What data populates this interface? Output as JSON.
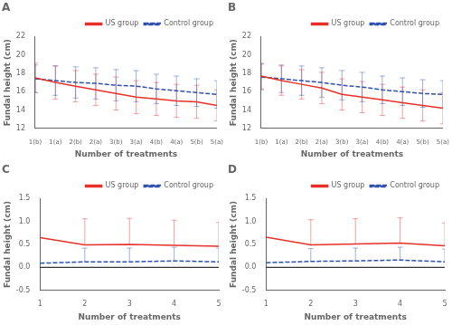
{
  "chart_data": [
    {
      "type": "line",
      "title": "A",
      "categories": [
        "1(b)",
        "1(a)",
        "2(b)",
        "2(a)",
        "3(b)",
        "3(a)",
        "4(b)",
        "4(a)",
        "5(b)",
        "5(a)"
      ],
      "series": [
        {
          "name": "US group",
          "color": "#e8302a",
          "line_style": "solid",
          "values": [
            17.5,
            17.0,
            16.6,
            16.2,
            15.8,
            15.4,
            15.2,
            15.0,
            14.9,
            14.5
          ],
          "errors": [
            1.6,
            1.8,
            1.7,
            1.7,
            1.8,
            1.8,
            1.8,
            1.8,
            1.8,
            1.7
          ]
        },
        {
          "name": "Control group",
          "color": "#3050b0",
          "line_style": "dashed",
          "values": [
            17.4,
            17.2,
            17.0,
            16.9,
            16.7,
            16.6,
            16.3,
            16.1,
            15.9,
            15.7
          ],
          "errors": [
            1.5,
            1.6,
            1.7,
            1.7,
            1.7,
            1.7,
            1.6,
            1.6,
            1.5,
            1.5
          ]
        }
      ],
      "xlabel": "Number of treatments",
      "ylabel": "Fundal height (cm)",
      "ylim": [
        12,
        22
      ],
      "yticks": [
        12,
        14,
        16,
        18,
        20,
        22
      ],
      "grid": false,
      "legend": "upper right"
    },
    {
      "type": "line",
      "title": "B",
      "categories": [
        "1(b)",
        "1(a)",
        "2(b)",
        "2(a)",
        "3(b)",
        "3(a)",
        "4(b)",
        "4(a)",
        "5(b)",
        "5(a)"
      ],
      "series": [
        {
          "name": "US group",
          "color": "#e8302a",
          "line_style": "solid",
          "values": [
            17.7,
            17.2,
            16.8,
            16.4,
            15.7,
            15.4,
            15.1,
            14.8,
            14.5,
            14.2
          ],
          "errors": [
            1.4,
            1.6,
            1.6,
            1.7,
            1.7,
            1.7,
            1.7,
            1.7,
            1.7,
            1.7
          ]
        },
        {
          "name": "Control group",
          "color": "#3050b0",
          "line_style": "dashed",
          "values": [
            17.6,
            17.4,
            17.2,
            17.0,
            16.7,
            16.5,
            16.2,
            16.0,
            15.8,
            15.7
          ],
          "errors": [
            1.4,
            1.5,
            1.6,
            1.6,
            1.6,
            1.6,
            1.5,
            1.5,
            1.5,
            1.5
          ]
        }
      ],
      "xlabel": "Number of treatments",
      "ylabel": "Fundal height (cm)",
      "ylim": [
        12,
        22
      ],
      "yticks": [
        12,
        14,
        16,
        18,
        20,
        22
      ],
      "grid": false,
      "legend": "upper right"
    },
    {
      "type": "line",
      "title": "C",
      "x": [
        1,
        2,
        3,
        4,
        5
      ],
      "series": [
        {
          "name": "US group",
          "color": "#e8302a",
          "line_style": "solid",
          "values": [
            0.65,
            0.49,
            0.5,
            0.48,
            0.46
          ],
          "errors_upper": [
            0.0,
            0.57,
            0.57,
            0.55,
            0.52
          ]
        },
        {
          "name": "Control group",
          "color": "#3050b0",
          "line_style": "dashed",
          "values": [
            0.09,
            0.12,
            0.12,
            0.14,
            0.12
          ],
          "errors_upper": [
            0.0,
            0.3,
            0.3,
            0.3,
            0.3
          ]
        }
      ],
      "xlabel": "Number of treatments",
      "ylabel": "Fundal height (cm)",
      "xlim": [
        1,
        5
      ],
      "xticks": [
        1,
        2,
        3,
        4,
        5
      ],
      "ylim": [
        -0.5,
        1.5
      ],
      "yticks": [
        -0.5,
        {
          "value": 0,
          "label": "0.0"
        },
        0.5,
        {
          "value": 1,
          "label": "1.0"
        },
        1.5
      ],
      "hline": 0,
      "grid": false,
      "legend": "upper right"
    },
    {
      "type": "line",
      "title": "D",
      "x": [
        1,
        2,
        3,
        4,
        5
      ],
      "series": [
        {
          "name": "US group",
          "color": "#e8302a",
          "line_style": "solid",
          "values": [
            0.66,
            0.49,
            0.51,
            0.53,
            0.47
          ],
          "errors_upper": [
            0.0,
            0.55,
            0.55,
            0.55,
            0.5
          ]
        },
        {
          "name": "Control group",
          "color": "#3050b0",
          "line_style": "dashed",
          "values": [
            0.1,
            0.13,
            0.14,
            0.16,
            0.12
          ],
          "errors_upper": [
            0.0,
            0.28,
            0.28,
            0.28,
            0.28
          ]
        }
      ],
      "xlabel": "Number of treatments",
      "ylabel": "Fundal height (cm)",
      "xlim": [
        1,
        5
      ],
      "xticks": [
        1,
        2,
        3,
        4,
        5
      ],
      "ylim": [
        -0.5,
        1.5
      ],
      "yticks": [
        -0.5,
        {
          "value": 0,
          "label": "0.0"
        },
        0.5,
        {
          "value": 1,
          "label": "1.0"
        },
        1.5
      ],
      "hline": 0,
      "grid": false,
      "legend": "upper right"
    }
  ]
}
